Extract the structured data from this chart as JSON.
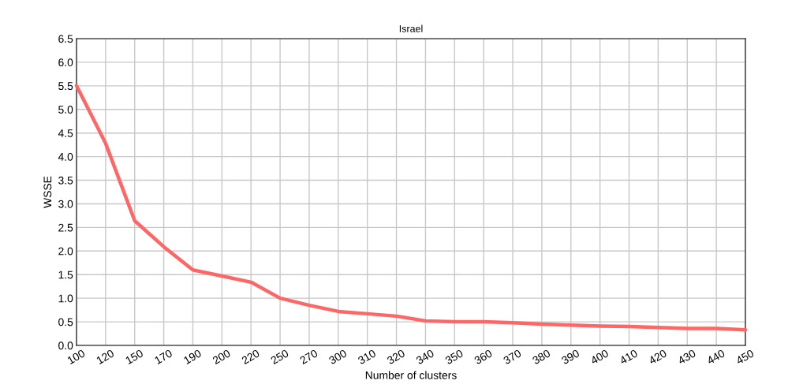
{
  "chart_data": {
    "type": "line",
    "title": "Israel",
    "xlabel": "Number of clusters",
    "ylabel": "WSSE",
    "categories": [
      "100",
      "120",
      "150",
      "170",
      "190",
      "200",
      "220",
      "250",
      "270",
      "300",
      "310",
      "320",
      "340",
      "350",
      "360",
      "370",
      "380",
      "390",
      "400",
      "410",
      "420",
      "430",
      "440",
      "450"
    ],
    "series": [
      {
        "color": "#ff6666",
        "values": [
          5.5,
          4.28,
          2.64,
          2.09,
          1.6,
          1.47,
          1.34,
          1.0,
          0.85,
          0.72,
          0.67,
          0.62,
          0.52,
          0.5,
          0.5,
          0.48,
          0.45,
          0.43,
          0.41,
          0.4,
          0.38,
          0.36,
          0.36,
          0.33
        ]
      }
    ],
    "ylim": [
      0,
      6.5
    ],
    "yticks": [
      {
        "value": 0,
        "label": "0.0"
      },
      0.5,
      {
        "value": 1,
        "label": "1.0"
      },
      1.5,
      {
        "value": 2,
        "label": "2.0"
      },
      2.5,
      {
        "value": 3,
        "label": "3.0"
      },
      3.5,
      {
        "value": 4,
        "label": "4.0"
      },
      4.5,
      {
        "value": 5,
        "label": "5.0"
      },
      5.5,
      {
        "value": 6,
        "label": "6.0"
      },
      6.5
    ],
    "grid": true,
    "legend": false,
    "marker": "none",
    "line_style": "solid"
  }
}
